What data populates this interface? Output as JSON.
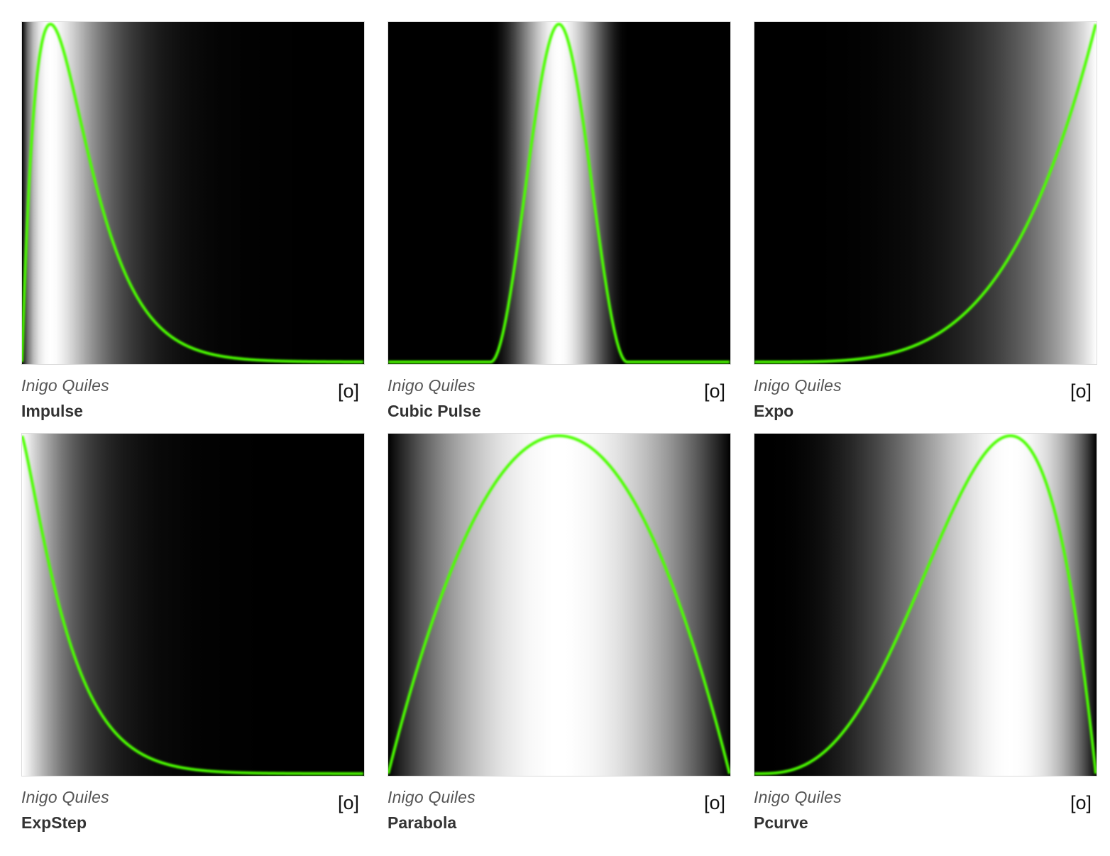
{
  "cards": [
    {
      "author": "Inigo Quiles",
      "title": "Impulse",
      "link_label": "[o]",
      "func": "impulse"
    },
    {
      "author": "Inigo Quiles",
      "title": "Cubic Pulse",
      "link_label": "[o]",
      "func": "cubicpulse"
    },
    {
      "author": "Inigo Quiles",
      "title": "Expo",
      "link_label": "[o]",
      "func": "expo"
    },
    {
      "author": "Inigo Quiles",
      "title": "ExpStep",
      "link_label": "[o]",
      "func": "expstep"
    },
    {
      "author": "Inigo Quiles",
      "title": "Parabola",
      "link_label": "[o]",
      "func": "parabola"
    },
    {
      "author": "Inigo Quiles",
      "title": "Pcurve",
      "link_label": "[o]",
      "func": "pcurve"
    }
  ],
  "colors": {
    "curve": "#4cff00",
    "background": "#000000",
    "gradient_high": "#ffffff"
  }
}
